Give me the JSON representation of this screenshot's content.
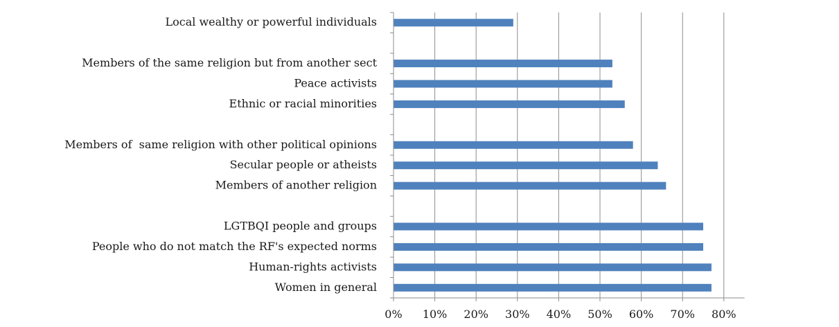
{
  "chart_data": {
    "type": "bar",
    "orientation": "horizontal",
    "title": "",
    "xlabel": "",
    "ylabel": "",
    "xlim": [
      0,
      85
    ],
    "grid": true,
    "legend": "none",
    "bar_color": "#4f81bd",
    "slots": [
      {
        "category": "Local wealthy or powerful individuals",
        "value": 29
      },
      {
        "category": "",
        "value": null
      },
      {
        "category": "Members of the same religion but from another sect",
        "value": 53
      },
      {
        "category": "Peace activists",
        "value": 53
      },
      {
        "category": "Ethnic or racial minorities",
        "value": 56
      },
      {
        "category": "",
        "value": null
      },
      {
        "category": "Members of  same religion with other political opinions",
        "value": 58
      },
      {
        "category": "Secular people or atheists",
        "value": 64
      },
      {
        "category": "Members of another religion",
        "value": 66
      },
      {
        "category": "",
        "value": null
      },
      {
        "category": "LGTBQI people and groups",
        "value": 75
      },
      {
        "category": "People who do not match the RF's expected norms",
        "value": 75
      },
      {
        "category": "Human-rights activists",
        "value": 77
      },
      {
        "category": "Women in general",
        "value": 77
      }
    ],
    "ticks": [
      {
        "value": 0,
        "label": "0%"
      },
      {
        "value": 10,
        "label": "10%"
      },
      {
        "value": 20,
        "label": "20%"
      },
      {
        "value": 30,
        "label": "30%"
      },
      {
        "value": 40,
        "label": "40%"
      },
      {
        "value": 50,
        "label": "50%"
      },
      {
        "value": 60,
        "label": "60%"
      },
      {
        "value": 70,
        "label": "70%"
      },
      {
        "value": 80,
        "label": "80%"
      }
    ]
  }
}
